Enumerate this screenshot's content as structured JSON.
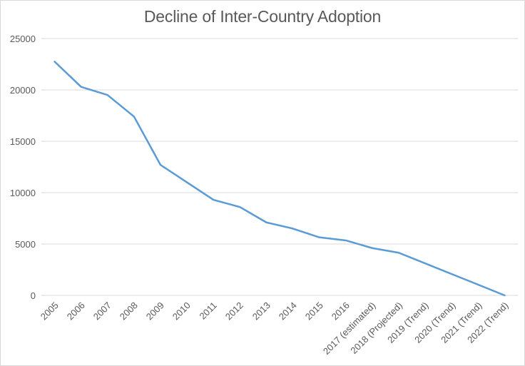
{
  "chart_data": {
    "type": "line",
    "title": "Decline of Inter-Country Adoption",
    "categories": [
      "2005",
      "2006",
      "2007",
      "2008",
      "2009",
      "2010",
      "2011",
      "2012",
      "2013",
      "2014",
      "2015",
      "2016",
      "2017 (estimated)",
      "2018 (Projected)",
      "2019 (Trend)",
      "2020 (Trend)",
      "2021 (Trend)",
      "2022 (Trend)"
    ],
    "values": [
      22750,
      20300,
      19500,
      17400,
      12700,
      11000,
      9300,
      8600,
      7100,
      6500,
      5650,
      5350,
      4600,
      4150,
      3110,
      2075,
      1040,
      0
    ],
    "xlabel": "",
    "ylabel": "",
    "ylim": [
      0,
      25000
    ],
    "yticks": [
      0,
      5000,
      10000,
      15000,
      20000,
      25000
    ],
    "grid": "horizontal",
    "legend": "none",
    "x_label_rotation_deg": 45
  },
  "colors": {
    "line": "#5B9BD5",
    "gridline": "#D9D9D9",
    "text": "#595959",
    "chart_border": "#D9D9D9",
    "background": "#FFFFFF"
  }
}
